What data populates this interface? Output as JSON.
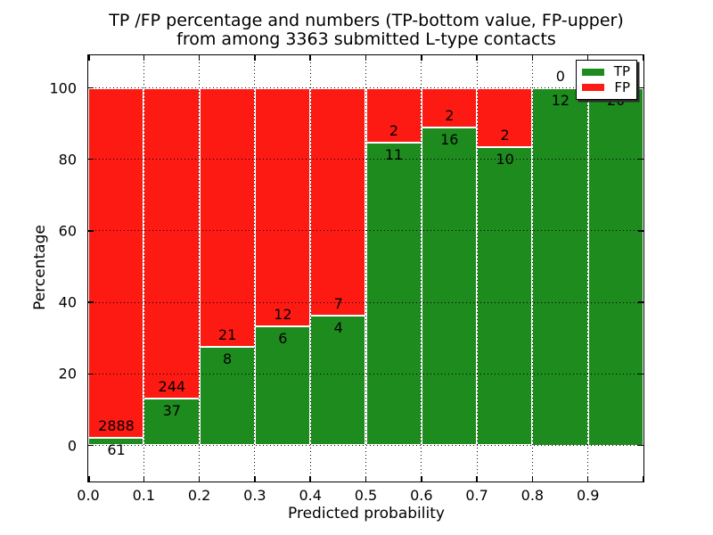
{
  "figure": {
    "title_line1": "TP /FP percentage and numbers (TP-bottom value, FP-upper)",
    "title_line2": "from among 3363 submitted L-type contacts"
  },
  "axes": {
    "xlabel": "Predicted probability",
    "ylabel": "Percentage",
    "x_tick_labels": [
      "0.0",
      "0.1",
      "0.2",
      "0.3",
      "0.4",
      "0.5",
      "0.6",
      "0.7",
      "0.8",
      "0.9"
    ],
    "y_tick_labels": [
      "0",
      "20",
      "40",
      "60",
      "80",
      "100"
    ],
    "y_tick_values": [
      0,
      20,
      40,
      60,
      80,
      100
    ]
  },
  "legend": {
    "items": [
      {
        "label": "TP",
        "color": "#1e8b1e"
      },
      {
        "label": "FP",
        "color": "#fd1a13"
      }
    ]
  },
  "chart_data": {
    "type": "bar",
    "stacked": true,
    "title": "TP /FP percentage and numbers (TP-bottom value, FP-upper) from among 3363 submitted L-type contacts",
    "xlabel": "Predicted probability",
    "ylabel": "Percentage",
    "x_bin_start": [
      0.0,
      0.1,
      0.2,
      0.3,
      0.4,
      0.5,
      0.6,
      0.7,
      0.8,
      0.9
    ],
    "bin_width": 0.1,
    "series": [
      {
        "name": "TP",
        "color": "#1e8b1e",
        "counts": [
          61,
          37,
          8,
          6,
          4,
          11,
          16,
          10,
          12,
          20
        ]
      },
      {
        "name": "FP",
        "color": "#fd1a13",
        "counts": [
          2888,
          244,
          21,
          12,
          7,
          2,
          2,
          2,
          0,
          0
        ]
      }
    ],
    "tp_percent_by_bin": [
      2.07,
      13.17,
      27.59,
      33.33,
      36.36,
      84.62,
      88.89,
      83.33,
      100.0,
      100.0
    ],
    "total_contacts": 3363,
    "xlim": [
      0.0,
      1.0
    ],
    "ylim": [
      -10,
      109
    ],
    "grid": true,
    "grid_style": "dotted",
    "legend_position": "upper right",
    "units": "percent"
  }
}
